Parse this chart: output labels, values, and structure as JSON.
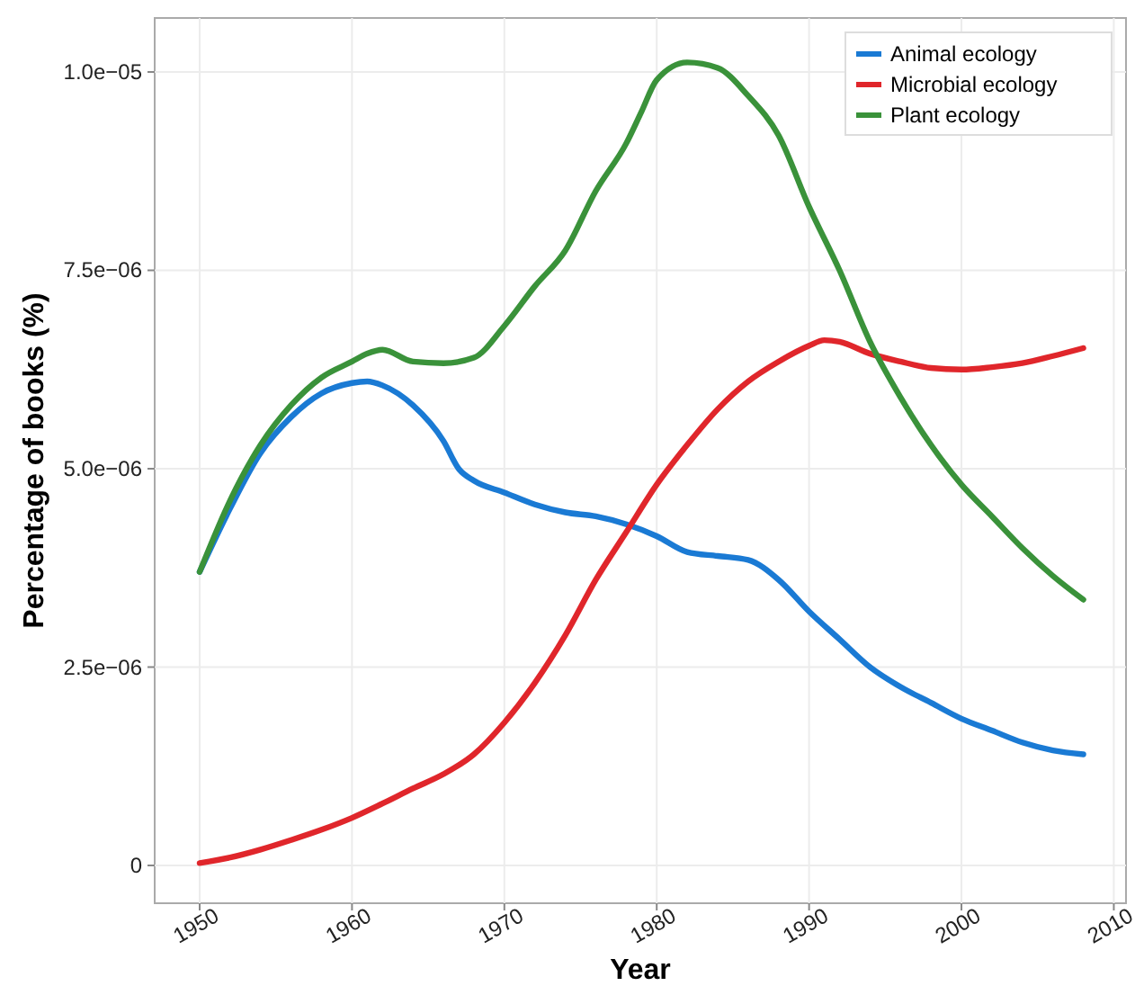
{
  "chart_data": {
    "type": "line",
    "xlabel": "Year",
    "ylabel": "Percentage of books (%)",
    "xlim": [
      1947.05,
      2010.8
    ],
    "ylim": [
      -4.76e-07,
      1.068e-05
    ],
    "xticks": [
      1950,
      1960,
      1970,
      1980,
      1990,
      2000,
      2010
    ],
    "yticks": [
      0,
      {
        "value": 2.5e-06,
        "label": "2.5e−06"
      },
      {
        "value": 5e-06,
        "label": "5.0e−06"
      },
      {
        "value": 7.5e-06,
        "label": "7.5e−06"
      },
      {
        "value": 1e-05,
        "label": "1.0e−05"
      }
    ],
    "grid": true,
    "legend": "top right",
    "line_style": "solid",
    "marker": "none",
    "series": [
      {
        "name": "Animal ecology",
        "color": "#1a7ad4",
        "x": [
          1950,
          1952,
          1954,
          1956,
          1958,
          1960,
          1961,
          1962,
          1964,
          1966,
          1967,
          1968,
          1970,
          1972,
          1974,
          1976,
          1978,
          1980,
          1982,
          1984,
          1986,
          1988,
          1990,
          1992,
          1994,
          1996,
          1998,
          2000,
          2002,
          2004,
          2006,
          2008
        ],
        "values": [
          3.7e-06,
          4.5e-06,
          5.2e-06,
          5.65e-06,
          5.95e-06,
          6.08e-06,
          6.1e-06,
          6.05e-06,
          5.8e-06,
          5.35e-06,
          5e-06,
          4.85e-06,
          4.7e-06,
          4.55e-06,
          4.45e-06,
          4.4e-06,
          4.3e-06,
          4.15e-06,
          3.95e-06,
          3.9e-06,
          3.85e-06,
          3.6e-06,
          3.2e-06,
          2.85e-06,
          2.5e-06,
          2.25e-06,
          2.05e-06,
          1.85e-06,
          1.7e-06,
          1.55e-06,
          1.45e-06,
          1.4e-06
        ]
      },
      {
        "name": "Microbial ecology",
        "color": "#e0262b",
        "x": [
          1950,
          1952,
          1954,
          1956,
          1958,
          1960,
          1962,
          1964,
          1966,
          1968,
          1970,
          1972,
          1974,
          1976,
          1978,
          1980,
          1982,
          1984,
          1986,
          1988,
          1990,
          1991,
          1992,
          1994,
          1996,
          1998,
          2000,
          2002,
          2004,
          2006,
          2008
        ],
        "values": [
          3e-08,
          1e-07,
          2e-07,
          3.2e-07,
          4.5e-07,
          6e-07,
          7.8e-07,
          9.7e-07,
          1.15e-06,
          1.4e-06,
          1.8e-06,
          2.3e-06,
          2.9e-06,
          3.6e-06,
          4.2e-06,
          4.8e-06,
          5.3e-06,
          5.75e-06,
          6.1e-06,
          6.35e-06,
          6.55e-06,
          6.62e-06,
          6.6e-06,
          6.45e-06,
          6.35e-06,
          6.27e-06,
          6.25e-06,
          6.28e-06,
          6.33e-06,
          6.42e-06,
          6.52e-06
        ]
      },
      {
        "name": "Plant ecology",
        "color": "#3a923a",
        "x": [
          1950,
          1952,
          1954,
          1956,
          1958,
          1960,
          1961,
          1962,
          1964,
          1966,
          1968,
          1970,
          1972,
          1974,
          1976,
          1978,
          1979,
          1980,
          1982,
          1984,
          1986,
          1988,
          1990,
          1992,
          1994,
          1996,
          1998,
          2000,
          2002,
          2004,
          2006,
          2008
        ],
        "values": [
          3.7e-06,
          4.6e-06,
          5.3e-06,
          5.8e-06,
          6.15e-06,
          6.35e-06,
          6.45e-06,
          6.5e-06,
          6.35e-06,
          6.33e-06,
          6.4e-06,
          6.8e-06,
          7.3e-06,
          7.75e-06,
          8.5e-06,
          9.1e-06,
          9.5e-06,
          9.9e-06,
          1.012e-05,
          1.005e-05,
          9.7e-06,
          9.2e-06,
          8.3e-06,
          7.5e-06,
          6.6e-06,
          5.9e-06,
          5.3e-06,
          4.8e-06,
          4.4e-06,
          4e-06,
          3.65e-06,
          3.35e-06
        ]
      }
    ]
  }
}
